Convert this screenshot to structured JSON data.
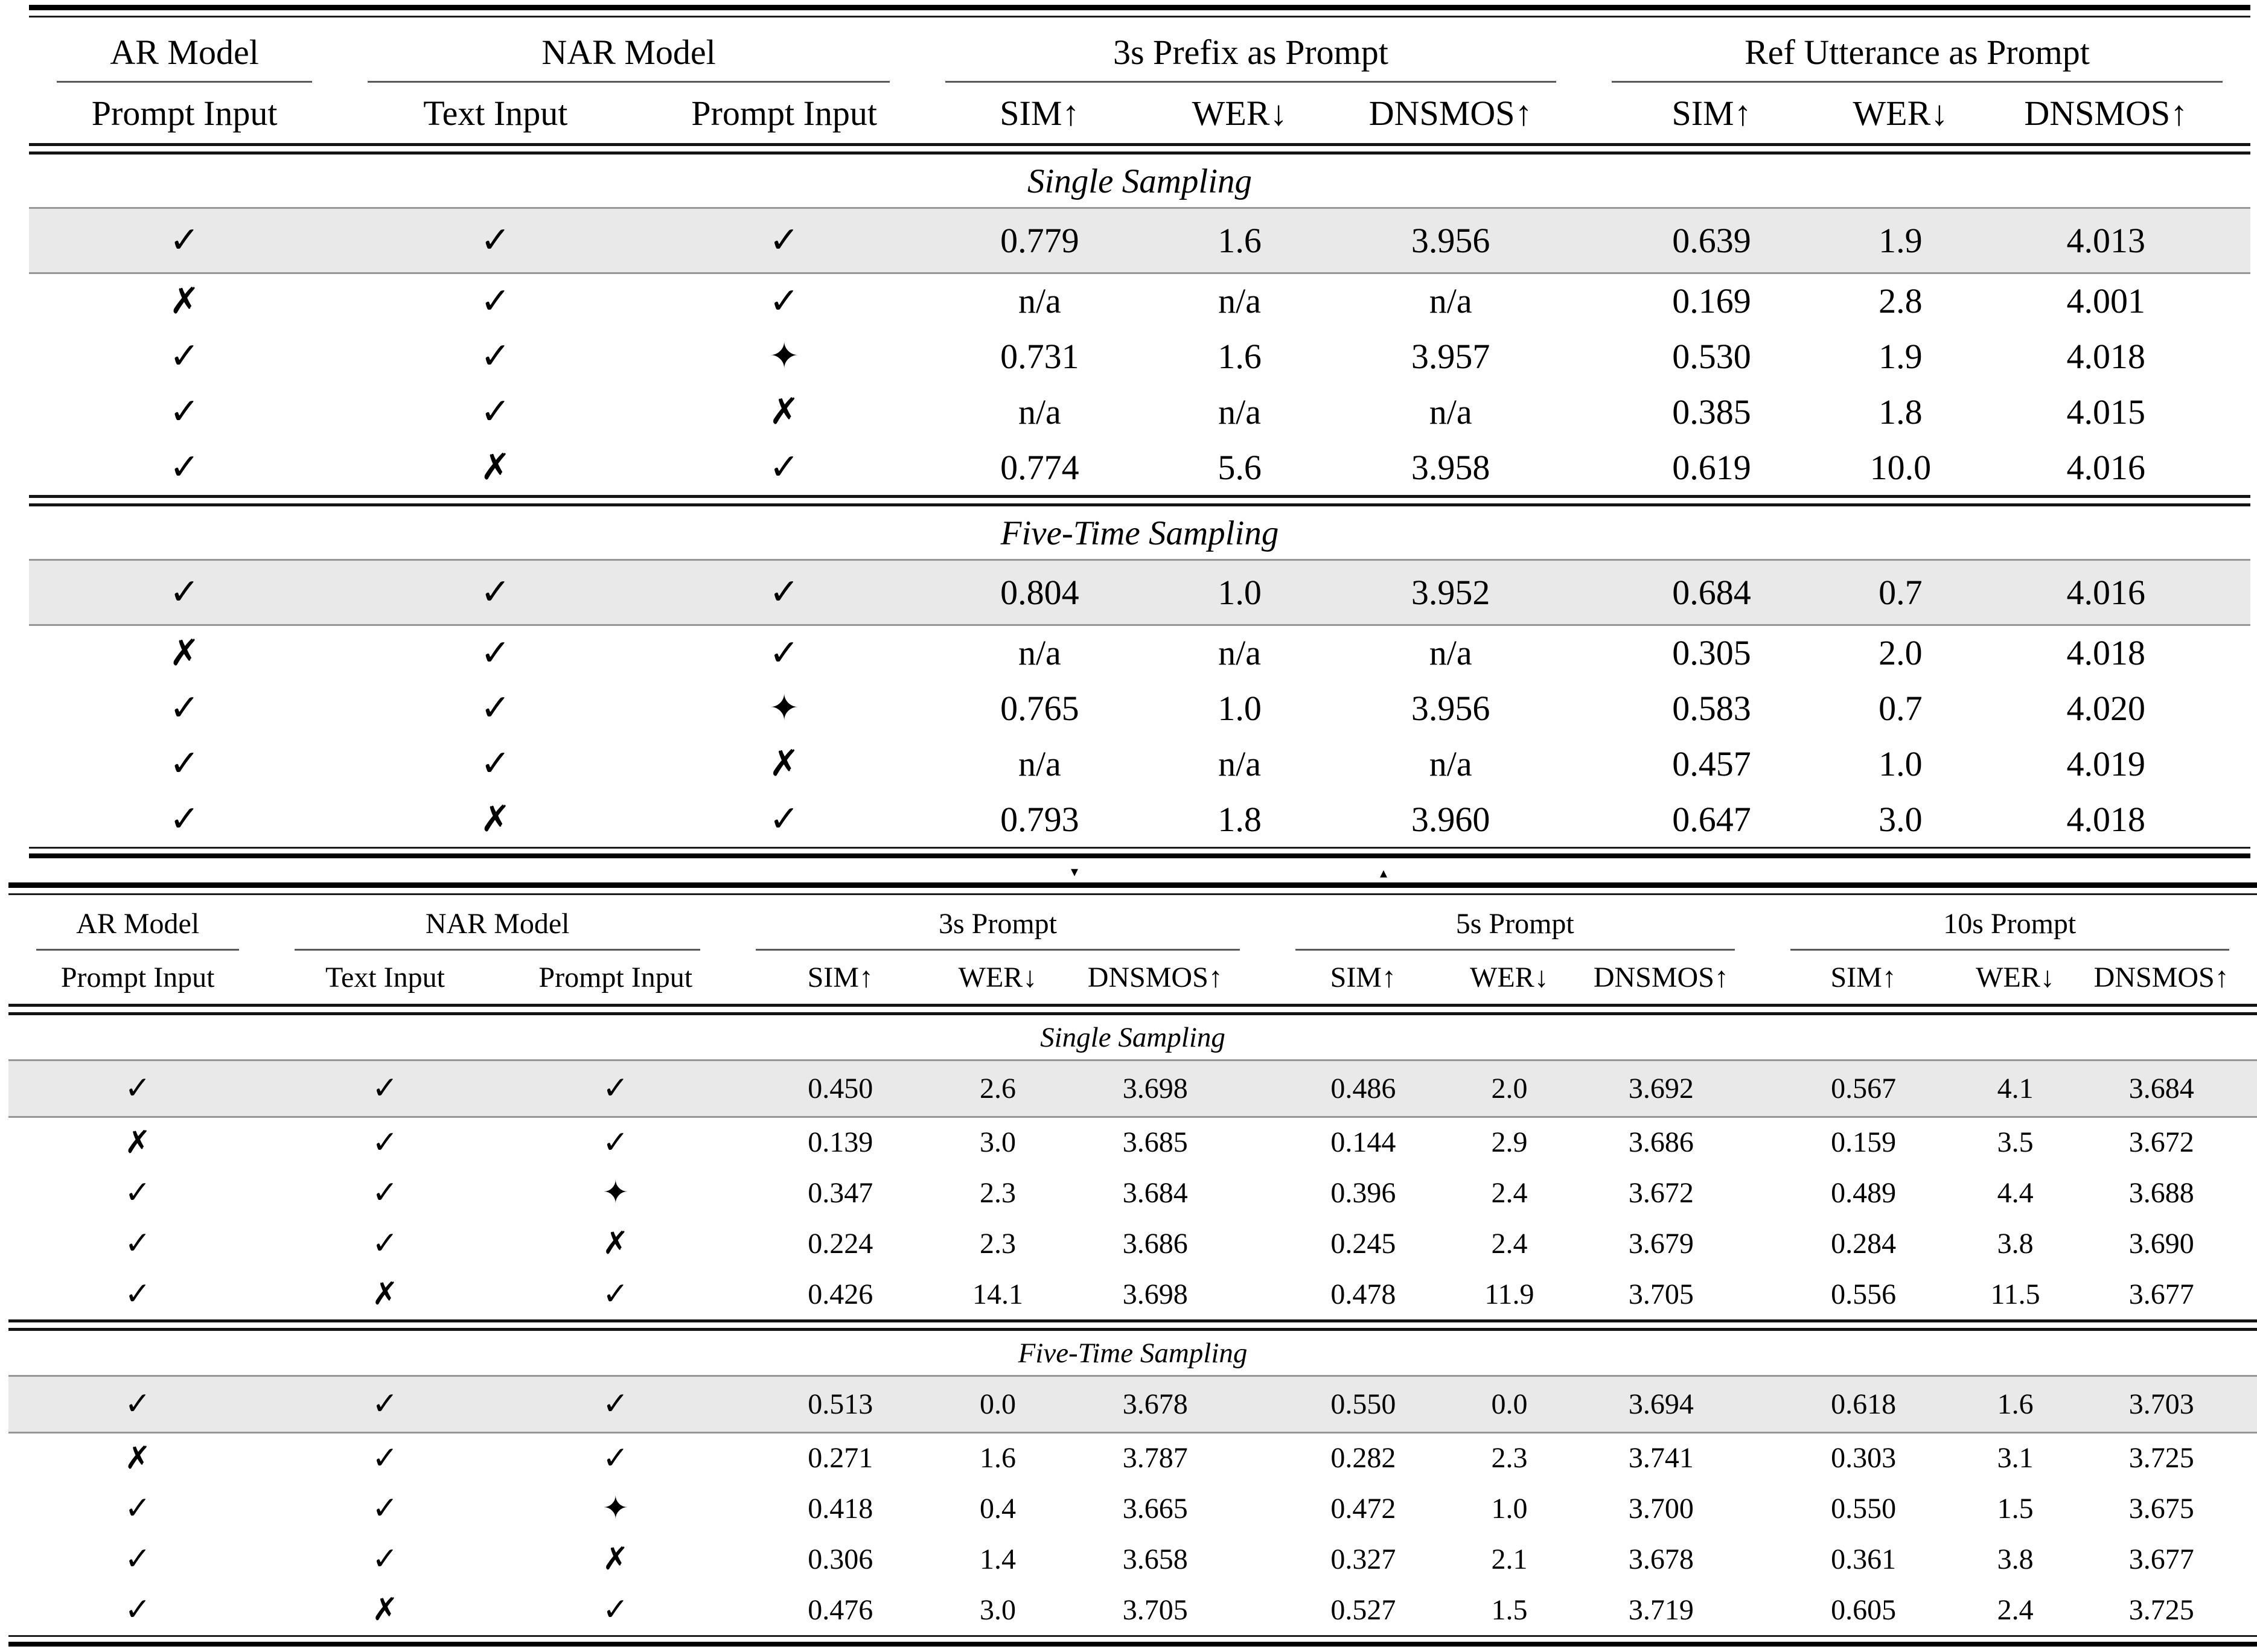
{
  "colors": {
    "highlight_row_bg": "#e9e9e9",
    "rule_color": "#000000"
  },
  "symbols": {
    "check": "✓",
    "cross": "✗",
    "diamond": "✦"
  },
  "artifacts": {
    "down_triangle": "▾",
    "up_triangle": "▴"
  },
  "table1": {
    "groups": [
      "AR Model",
      "NAR Model",
      "3s Prefix as Prompt",
      "Ref Utterance as Prompt"
    ],
    "subheaders": [
      "Prompt Input",
      "Text Input",
      "Prompt Input",
      "SIM↑",
      "WER↓",
      "DNSMOS↑",
      "SIM↑",
      "WER↓",
      "DNSMOS↑"
    ],
    "sections": [
      {
        "title": "Single Sampling",
        "rows": [
          {
            "highlight": true,
            "marks": [
              "check",
              "check",
              "check"
            ],
            "values": [
              "0.779",
              "1.6",
              "3.956",
              "0.639",
              "1.9",
              "4.013"
            ]
          },
          {
            "highlight": false,
            "marks": [
              "cross",
              "check",
              "check"
            ],
            "values": [
              "n/a",
              "n/a",
              "n/a",
              "0.169",
              "2.8",
              "4.001"
            ]
          },
          {
            "highlight": false,
            "marks": [
              "check",
              "check",
              "diamond"
            ],
            "values": [
              "0.731",
              "1.6",
              "3.957",
              "0.530",
              "1.9",
              "4.018"
            ]
          },
          {
            "highlight": false,
            "marks": [
              "check",
              "check",
              "cross"
            ],
            "values": [
              "n/a",
              "n/a",
              "n/a",
              "0.385",
              "1.8",
              "4.015"
            ]
          },
          {
            "highlight": false,
            "marks": [
              "check",
              "cross",
              "check"
            ],
            "values": [
              "0.774",
              "5.6",
              "3.958",
              "0.619",
              "10.0",
              "4.016"
            ]
          }
        ]
      },
      {
        "title": "Five-Time Sampling",
        "rows": [
          {
            "highlight": true,
            "marks": [
              "check",
              "check",
              "check"
            ],
            "values": [
              "0.804",
              "1.0",
              "3.952",
              "0.684",
              "0.7",
              "4.016"
            ]
          },
          {
            "highlight": false,
            "marks": [
              "cross",
              "check",
              "check"
            ],
            "values": [
              "n/a",
              "n/a",
              "n/a",
              "0.305",
              "2.0",
              "4.018"
            ]
          },
          {
            "highlight": false,
            "marks": [
              "check",
              "check",
              "diamond"
            ],
            "values": [
              "0.765",
              "1.0",
              "3.956",
              "0.583",
              "0.7",
              "4.020"
            ]
          },
          {
            "highlight": false,
            "marks": [
              "check",
              "check",
              "cross"
            ],
            "values": [
              "n/a",
              "n/a",
              "n/a",
              "0.457",
              "1.0",
              "4.019"
            ]
          },
          {
            "highlight": false,
            "marks": [
              "check",
              "cross",
              "check"
            ],
            "values": [
              "0.793",
              "1.8",
              "3.960",
              "0.647",
              "3.0",
              "4.018"
            ]
          }
        ]
      }
    ]
  },
  "table2": {
    "groups": [
      "AR Model",
      "NAR Model",
      "3s Prompt",
      "5s Prompt",
      "10s Prompt"
    ],
    "subheaders": [
      "Prompt Input",
      "Text Input",
      "Prompt Input",
      "SIM↑",
      "WER↓",
      "DNSMOS↑",
      "SIM↑",
      "WER↓",
      "DNSMOS↑",
      "SIM↑",
      "WER↓",
      "DNSMOS↑"
    ],
    "sections": [
      {
        "title": "Single Sampling",
        "rows": [
          {
            "highlight": true,
            "marks": [
              "check",
              "check",
              "check"
            ],
            "values": [
              "0.450",
              "2.6",
              "3.698",
              "0.486",
              "2.0",
              "3.692",
              "0.567",
              "4.1",
              "3.684"
            ]
          },
          {
            "highlight": false,
            "marks": [
              "cross",
              "check",
              "check"
            ],
            "values": [
              "0.139",
              "3.0",
              "3.685",
              "0.144",
              "2.9",
              "3.686",
              "0.159",
              "3.5",
              "3.672"
            ]
          },
          {
            "highlight": false,
            "marks": [
              "check",
              "check",
              "diamond"
            ],
            "values": [
              "0.347",
              "2.3",
              "3.684",
              "0.396",
              "2.4",
              "3.672",
              "0.489",
              "4.4",
              "3.688"
            ]
          },
          {
            "highlight": false,
            "marks": [
              "check",
              "check",
              "cross"
            ],
            "values": [
              "0.224",
              "2.3",
              "3.686",
              "0.245",
              "2.4",
              "3.679",
              "0.284",
              "3.8",
              "3.690"
            ]
          },
          {
            "highlight": false,
            "marks": [
              "check",
              "cross",
              "check"
            ],
            "values": [
              "0.426",
              "14.1",
              "3.698",
              "0.478",
              "11.9",
              "3.705",
              "0.556",
              "11.5",
              "3.677"
            ]
          }
        ]
      },
      {
        "title": "Five-Time Sampling",
        "rows": [
          {
            "highlight": true,
            "marks": [
              "check",
              "check",
              "check"
            ],
            "values": [
              "0.513",
              "0.0",
              "3.678",
              "0.550",
              "0.0",
              "3.694",
              "0.618",
              "1.6",
              "3.703"
            ]
          },
          {
            "highlight": false,
            "marks": [
              "cross",
              "check",
              "check"
            ],
            "values": [
              "0.271",
              "1.6",
              "3.787",
              "0.282",
              "2.3",
              "3.741",
              "0.303",
              "3.1",
              "3.725"
            ]
          },
          {
            "highlight": false,
            "marks": [
              "check",
              "check",
              "diamond"
            ],
            "values": [
              "0.418",
              "0.4",
              "3.665",
              "0.472",
              "1.0",
              "3.700",
              "0.550",
              "1.5",
              "3.675"
            ]
          },
          {
            "highlight": false,
            "marks": [
              "check",
              "check",
              "cross"
            ],
            "values": [
              "0.306",
              "1.4",
              "3.658",
              "0.327",
              "2.1",
              "3.678",
              "0.361",
              "3.8",
              "3.677"
            ]
          },
          {
            "highlight": false,
            "marks": [
              "check",
              "cross",
              "check"
            ],
            "values": [
              "0.476",
              "3.0",
              "3.705",
              "0.527",
              "1.5",
              "3.719",
              "0.605",
              "2.4",
              "3.725"
            ]
          }
        ]
      }
    ]
  }
}
